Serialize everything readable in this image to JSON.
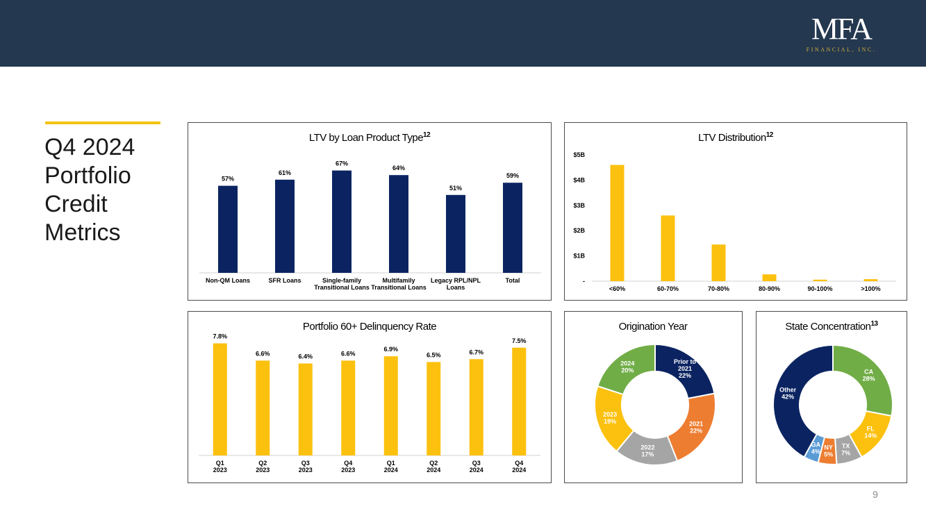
{
  "header": {
    "logo_main": "MFA",
    "logo_sub": "FINANCIAL, INC."
  },
  "page": {
    "title_lines": [
      "Q4 2024",
      "Portfolio",
      "Credit",
      "Metrics"
    ],
    "page_number": "9"
  },
  "colors": {
    "navy": "#0b2461",
    "gold": "#fcc10f",
    "green": "#71ad47",
    "orange": "#ed7d31",
    "gray": "#a5a5a5",
    "blue": "#5b9bd5",
    "header": "#24384f"
  },
  "chart_data": [
    {
      "type": "bar",
      "title": "LTV by Loan Product Type",
      "title_sup": "12",
      "categories": [
        [
          "Non-QM Loans"
        ],
        [
          "SFR Loans"
        ],
        [
          "Single-family",
          "Transitional Loans"
        ],
        [
          "Multifamily",
          "Transitional Loans"
        ],
        [
          "Legacy RPL/NPL",
          "Loans"
        ],
        [
          "Total"
        ]
      ],
      "values": [
        57,
        61,
        67,
        64,
        51,
        59
      ],
      "labels": [
        "57%",
        "61%",
        "67%",
        "64%",
        "51%",
        "59%"
      ],
      "color": "#0b2461"
    },
    {
      "type": "bar",
      "title": "LTV Distribution",
      "title_sup": "12",
      "categories": [
        "<60%",
        "60-70%",
        "70-80%",
        "80-90%",
        "90-100%",
        ">100%"
      ],
      "values": [
        4.6,
        2.6,
        1.45,
        0.27,
        0.06,
        0.08
      ],
      "yticks": [
        "-",
        "$1B",
        "$2B",
        "$3B",
        "$4B",
        "$5B"
      ],
      "ylim": [
        0,
        5
      ],
      "color": "#fcc10f"
    },
    {
      "type": "bar",
      "title": "Portfolio 60+ Delinquency Rate",
      "categories": [
        [
          "Q1",
          "2023"
        ],
        [
          "Q2",
          "2023"
        ],
        [
          "Q3",
          "2023"
        ],
        [
          "Q4",
          "2023"
        ],
        [
          "Q1",
          "2024"
        ],
        [
          "Q2",
          "2024"
        ],
        [
          "Q3",
          "2024"
        ],
        [
          "Q4",
          "2024"
        ]
      ],
      "values": [
        7.8,
        6.6,
        6.4,
        6.6,
        6.9,
        6.5,
        6.7,
        7.5
      ],
      "labels": [
        "7.8%",
        "6.6%",
        "6.4%",
        "6.6%",
        "6.9%",
        "6.5%",
        "6.7%",
        "7.5%"
      ],
      "color": "#fcc10f"
    },
    {
      "type": "pie",
      "title": "Origination Year",
      "slices": [
        {
          "label": [
            "Prior to",
            "2021",
            "22%"
          ],
          "value": 22,
          "color": "#0b2461"
        },
        {
          "label": [
            "2021",
            "22%"
          ],
          "value": 22,
          "color": "#ed7d31"
        },
        {
          "label": [
            "2022",
            "17%"
          ],
          "value": 17,
          "color": "#a5a5a5"
        },
        {
          "label": [
            "2023",
            "19%"
          ],
          "value": 19,
          "color": "#fcc10f"
        },
        {
          "label": [
            "2024",
            "20%"
          ],
          "value": 20,
          "color": "#71ad47"
        }
      ]
    },
    {
      "type": "pie",
      "title": "State Concentration",
      "title_sup": "13",
      "slices": [
        {
          "label": [
            "CA",
            "28%"
          ],
          "value": 28,
          "color": "#71ad47"
        },
        {
          "label": [
            "FL",
            "14%"
          ],
          "value": 14,
          "color": "#fcc10f"
        },
        {
          "label": [
            "TX",
            "7%"
          ],
          "value": 7,
          "color": "#a5a5a5"
        },
        {
          "label": [
            "NY",
            "5%"
          ],
          "value": 5,
          "color": "#ed7d31"
        },
        {
          "label": [
            "GA",
            "4%"
          ],
          "value": 4,
          "color": "#5b9bd5"
        },
        {
          "label": [
            "Other",
            "42%"
          ],
          "value": 42,
          "color": "#0b2461"
        }
      ]
    }
  ]
}
